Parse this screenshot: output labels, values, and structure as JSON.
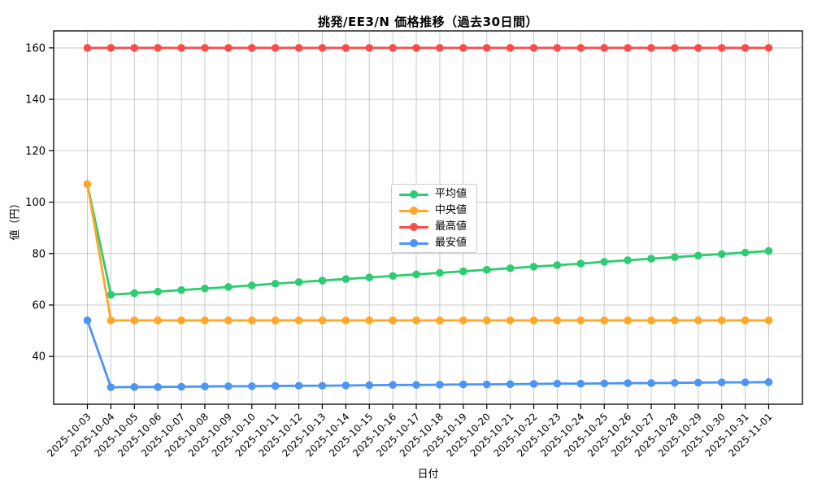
{
  "chart_data": {
    "type": "line",
    "title": "挑発/EE3/N 価格推移（過去30日間）",
    "xlabel": "日付",
    "ylabel": "値（円）",
    "categories": [
      "2025-10-03",
      "2025-10-04",
      "2025-10-05",
      "2025-10-06",
      "2025-10-07",
      "2025-10-08",
      "2025-10-09",
      "2025-10-10",
      "2025-10-11",
      "2025-10-12",
      "2025-10-13",
      "2025-10-14",
      "2025-10-15",
      "2025-10-16",
      "2025-10-17",
      "2025-10-18",
      "2025-10-19",
      "2025-10-20",
      "2025-10-21",
      "2025-10-22",
      "2025-10-23",
      "2025-10-24",
      "2025-10-25",
      "2025-10-26",
      "2025-10-27",
      "2025-10-28",
      "2025-10-29",
      "2025-10-30",
      "2025-10-31",
      "2025-11-01"
    ],
    "series": [
      {
        "key": "average",
        "name": "平均値",
        "color": "#2ecc71",
        "values": [
          107.0,
          64.0,
          64.6,
          65.2,
          65.8,
          66.4,
          67.0,
          67.6,
          68.3,
          68.9,
          69.5,
          70.1,
          70.7,
          71.3,
          71.9,
          72.5,
          73.1,
          73.7,
          74.3,
          74.9,
          75.5,
          76.1,
          76.8,
          77.4,
          78.0,
          78.6,
          79.2,
          79.8,
          80.4,
          81.0
        ]
      },
      {
        "key": "median",
        "name": "中央値",
        "color": "#ffa726",
        "values": [
          107,
          54,
          54,
          54,
          54,
          54,
          54,
          54,
          54,
          54,
          54,
          54,
          54,
          54,
          54,
          54,
          54,
          54,
          54,
          54,
          54,
          54,
          54,
          54,
          54,
          54,
          54,
          54,
          54,
          54
        ]
      },
      {
        "key": "highest",
        "name": "最高値",
        "color": "#fa4b4b",
        "values": [
          160,
          160,
          160,
          160,
          160,
          160,
          160,
          160,
          160,
          160,
          160,
          160,
          160,
          160,
          160,
          160,
          160,
          160,
          160,
          160,
          160,
          160,
          160,
          160,
          160,
          160,
          160,
          160,
          160,
          160
        ]
      },
      {
        "key": "lowest",
        "name": "最安値",
        "color": "#4d94f5",
        "values": [
          54,
          28.0,
          28.1,
          28.1,
          28.2,
          28.3,
          28.4,
          28.4,
          28.5,
          28.6,
          28.6,
          28.7,
          28.8,
          28.9,
          28.9,
          29.0,
          29.1,
          29.1,
          29.2,
          29.3,
          29.4,
          29.4,
          29.5,
          29.6,
          29.6,
          29.7,
          29.8,
          29.9,
          29.9,
          30.0
        ]
      }
    ],
    "yticks": [
      40,
      60,
      80,
      100,
      120,
      140,
      160
    ],
    "ylim": [
      21.4,
      166.6
    ],
    "grid": true,
    "grid_color": "#c9c9c9",
    "axis_color": "#000000",
    "legend_position": "center"
  }
}
